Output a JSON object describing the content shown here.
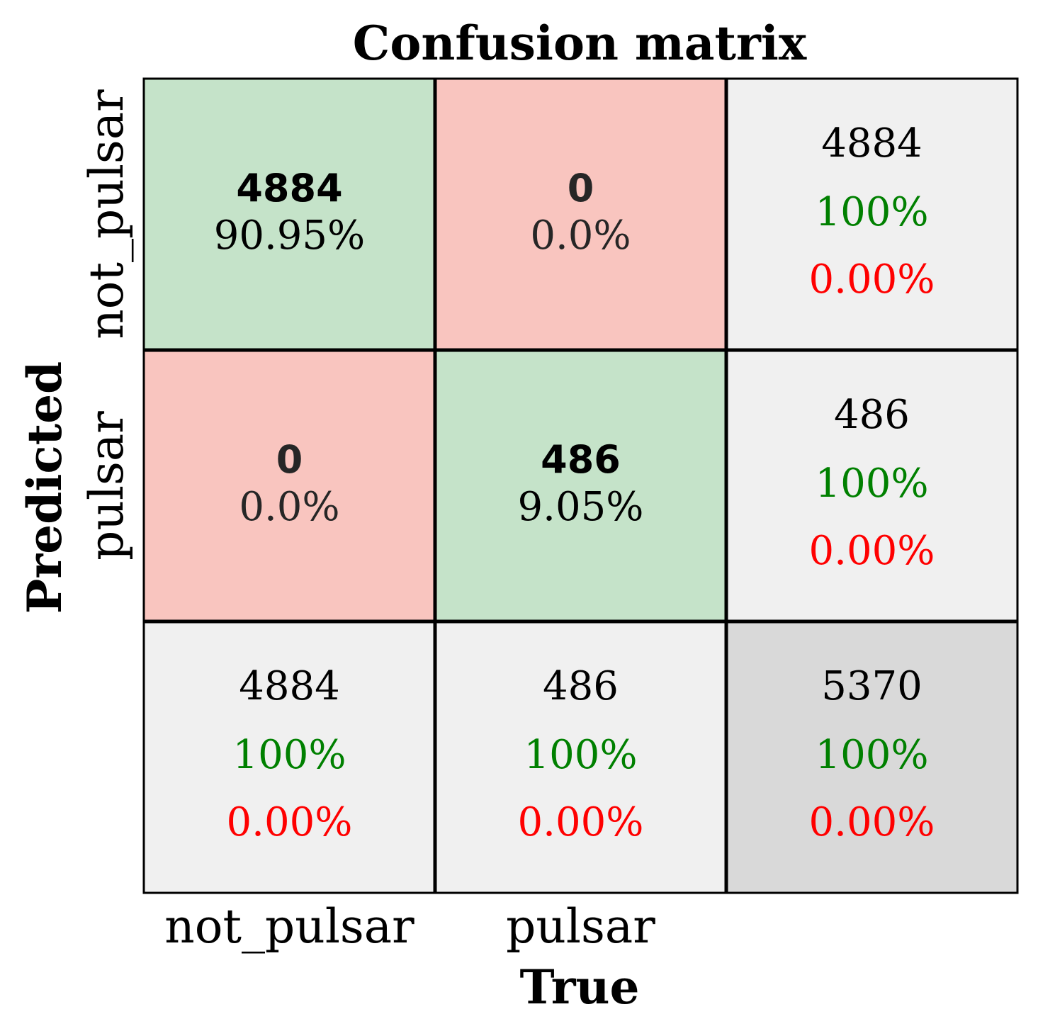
{
  "chart_data": {
    "type": "heatmap",
    "title": "Confusion matrix",
    "xlabel": "True",
    "ylabel": "Predicted",
    "x_categories": [
      "not_pulsar",
      "pulsar"
    ],
    "y_categories": [
      "not_pulsar",
      "pulsar"
    ],
    "cells": [
      [
        {
          "count": "4884",
          "percent": "90.95%",
          "kind": "correct"
        },
        {
          "count": "0",
          "percent": "0.0%",
          "kind": "error"
        }
      ],
      [
        {
          "count": "0",
          "percent": "0.0%",
          "kind": "error"
        },
        {
          "count": "486",
          "percent": "9.05%",
          "kind": "correct"
        }
      ]
    ],
    "row_summary": [
      {
        "total": "4884",
        "correct_pct": "100%",
        "error_pct": "0.00%"
      },
      {
        "total": "486",
        "correct_pct": "100%",
        "error_pct": "0.00%"
      }
    ],
    "col_summary": [
      {
        "total": "4884",
        "correct_pct": "100%",
        "error_pct": "0.00%"
      },
      {
        "total": "486",
        "correct_pct": "100%",
        "error_pct": "0.00%"
      }
    ],
    "overall": {
      "total": "5370",
      "correct_pct": "100%",
      "error_pct": "0.00%"
    },
    "colors": {
      "correct": "#c5e3c9",
      "error": "#f9c5bf",
      "summary": "#f0f0f0",
      "overall": "#d9d9d9",
      "correct_text": "#008000",
      "error_text": "#ff0000",
      "cell_text": "#262626"
    }
  }
}
